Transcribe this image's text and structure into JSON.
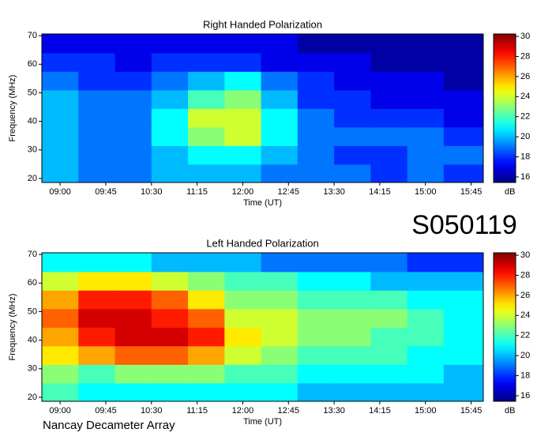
{
  "figure_title": "S050119",
  "credit": "Nancay Decameter Array",
  "chart_data": [
    {
      "type": "heatmap",
      "title": "Right Handed Polarization",
      "x_label": "Time (UT)",
      "y_label": "Frequency (MHz)",
      "colorbar_label": "dB",
      "xlim": [
        8.7,
        15.95
      ],
      "ylim": [
        18.6,
        70.6
      ],
      "clim": [
        15.45,
        30.24
      ],
      "xticks": [
        {
          "value": 9,
          "label": "09:00"
        },
        {
          "value": 9.75,
          "label": "09:45"
        },
        {
          "value": 10.5,
          "label": "10:30"
        },
        {
          "value": 11.25,
          "label": "11:15"
        },
        {
          "value": 12,
          "label": "12:00"
        },
        {
          "value": 12.75,
          "label": "12:45"
        },
        {
          "value": 13.5,
          "label": "13:30"
        },
        {
          "value": 14.25,
          "label": "14:15"
        },
        {
          "value": 15,
          "label": "15:00"
        },
        {
          "value": 15.75,
          "label": "15:45"
        }
      ],
      "yticks": [
        20,
        30,
        40,
        50,
        60,
        70
      ],
      "cticks": [
        16,
        18,
        20,
        22,
        24,
        26,
        28,
        30
      ],
      "xbins": [
        8.7,
        9.3,
        9.9,
        10.5,
        11.1,
        11.7,
        12.3,
        12.9,
        13.5,
        14.1,
        14.7,
        15.3,
        15.95
      ],
      "ybins": [
        18.6,
        25,
        31.5,
        38,
        44.5,
        51,
        57.5,
        64,
        70.6
      ],
      "values": [
        [
          20,
          19,
          19,
          20,
          20,
          20,
          19,
          19,
          19,
          18,
          19,
          18
        ],
        [
          20,
          19,
          19,
          20,
          21,
          21,
          20,
          19,
          18,
          18,
          19,
          19
        ],
        [
          20,
          19,
          19,
          21,
          23,
          24,
          21,
          19,
          19,
          19,
          19,
          18
        ],
        [
          20,
          19,
          19,
          21,
          24,
          24,
          21,
          19,
          18,
          18,
          18,
          17
        ],
        [
          20,
          19,
          19,
          20,
          22,
          23,
          20,
          18,
          18,
          17,
          17,
          17
        ],
        [
          19,
          18,
          18,
          19,
          20,
          21,
          19,
          18,
          17,
          17,
          17,
          16
        ],
        [
          18,
          18,
          17,
          18,
          18,
          18,
          17,
          17,
          17,
          16,
          16,
          16
        ],
        [
          17,
          17,
          17,
          17,
          17,
          17,
          17,
          16,
          16,
          16,
          16,
          16
        ]
      ]
    },
    {
      "type": "heatmap",
      "title": "Left Handed Polarization",
      "x_label": "Time (UT)",
      "y_label": "Frequency (MHz)",
      "colorbar_label": "dB",
      "xlim": [
        8.7,
        15.95
      ],
      "ylim": [
        18.6,
        70.6
      ],
      "clim": [
        15.45,
        30.24
      ],
      "xticks": [
        {
          "value": 9,
          "label": "09:00"
        },
        {
          "value": 9.75,
          "label": "09:45"
        },
        {
          "value": 10.5,
          "label": "10:30"
        },
        {
          "value": 11.25,
          "label": "11:15"
        },
        {
          "value": 12,
          "label": "12:00"
        },
        {
          "value": 12.75,
          "label": "12:45"
        },
        {
          "value": 13.5,
          "label": "13:30"
        },
        {
          "value": 14.25,
          "label": "14:15"
        },
        {
          "value": 15,
          "label": "15:00"
        },
        {
          "value": 15.75,
          "label": "15:45"
        }
      ],
      "yticks": [
        20,
        30,
        40,
        50,
        60,
        70
      ],
      "cticks": [
        16,
        18,
        20,
        22,
        24,
        26,
        28,
        30
      ],
      "xbins": [
        8.7,
        9.3,
        9.9,
        10.5,
        11.1,
        11.7,
        12.3,
        12.9,
        13.5,
        14.1,
        14.7,
        15.3,
        15.95
      ],
      "ybins": [
        18.6,
        25,
        31.5,
        38,
        44.5,
        51,
        57.5,
        64,
        70.6
      ],
      "values": [
        [
          22,
          21,
          21,
          21,
          21,
          21,
          21,
          20,
          20,
          20,
          20,
          20
        ],
        [
          23,
          22,
          23,
          23,
          23,
          22,
          22,
          21,
          21,
          21,
          21,
          20
        ],
        [
          25,
          26,
          27,
          27,
          26,
          24,
          23,
          22,
          22,
          22,
          21,
          21
        ],
        [
          26,
          28,
          29,
          29,
          28,
          25,
          24,
          23,
          23,
          22,
          22,
          21
        ],
        [
          27,
          29,
          29,
          28,
          27,
          24,
          24,
          23,
          23,
          23,
          22,
          21
        ],
        [
          26,
          28,
          28,
          27,
          25,
          23,
          23,
          22,
          22,
          22,
          21,
          21
        ],
        [
          24,
          25,
          25,
          24,
          23,
          22,
          22,
          21,
          21,
          20,
          20,
          20
        ],
        [
          21,
          21,
          21,
          20,
          20,
          20,
          19,
          19,
          19,
          19,
          18,
          18
        ]
      ]
    }
  ]
}
